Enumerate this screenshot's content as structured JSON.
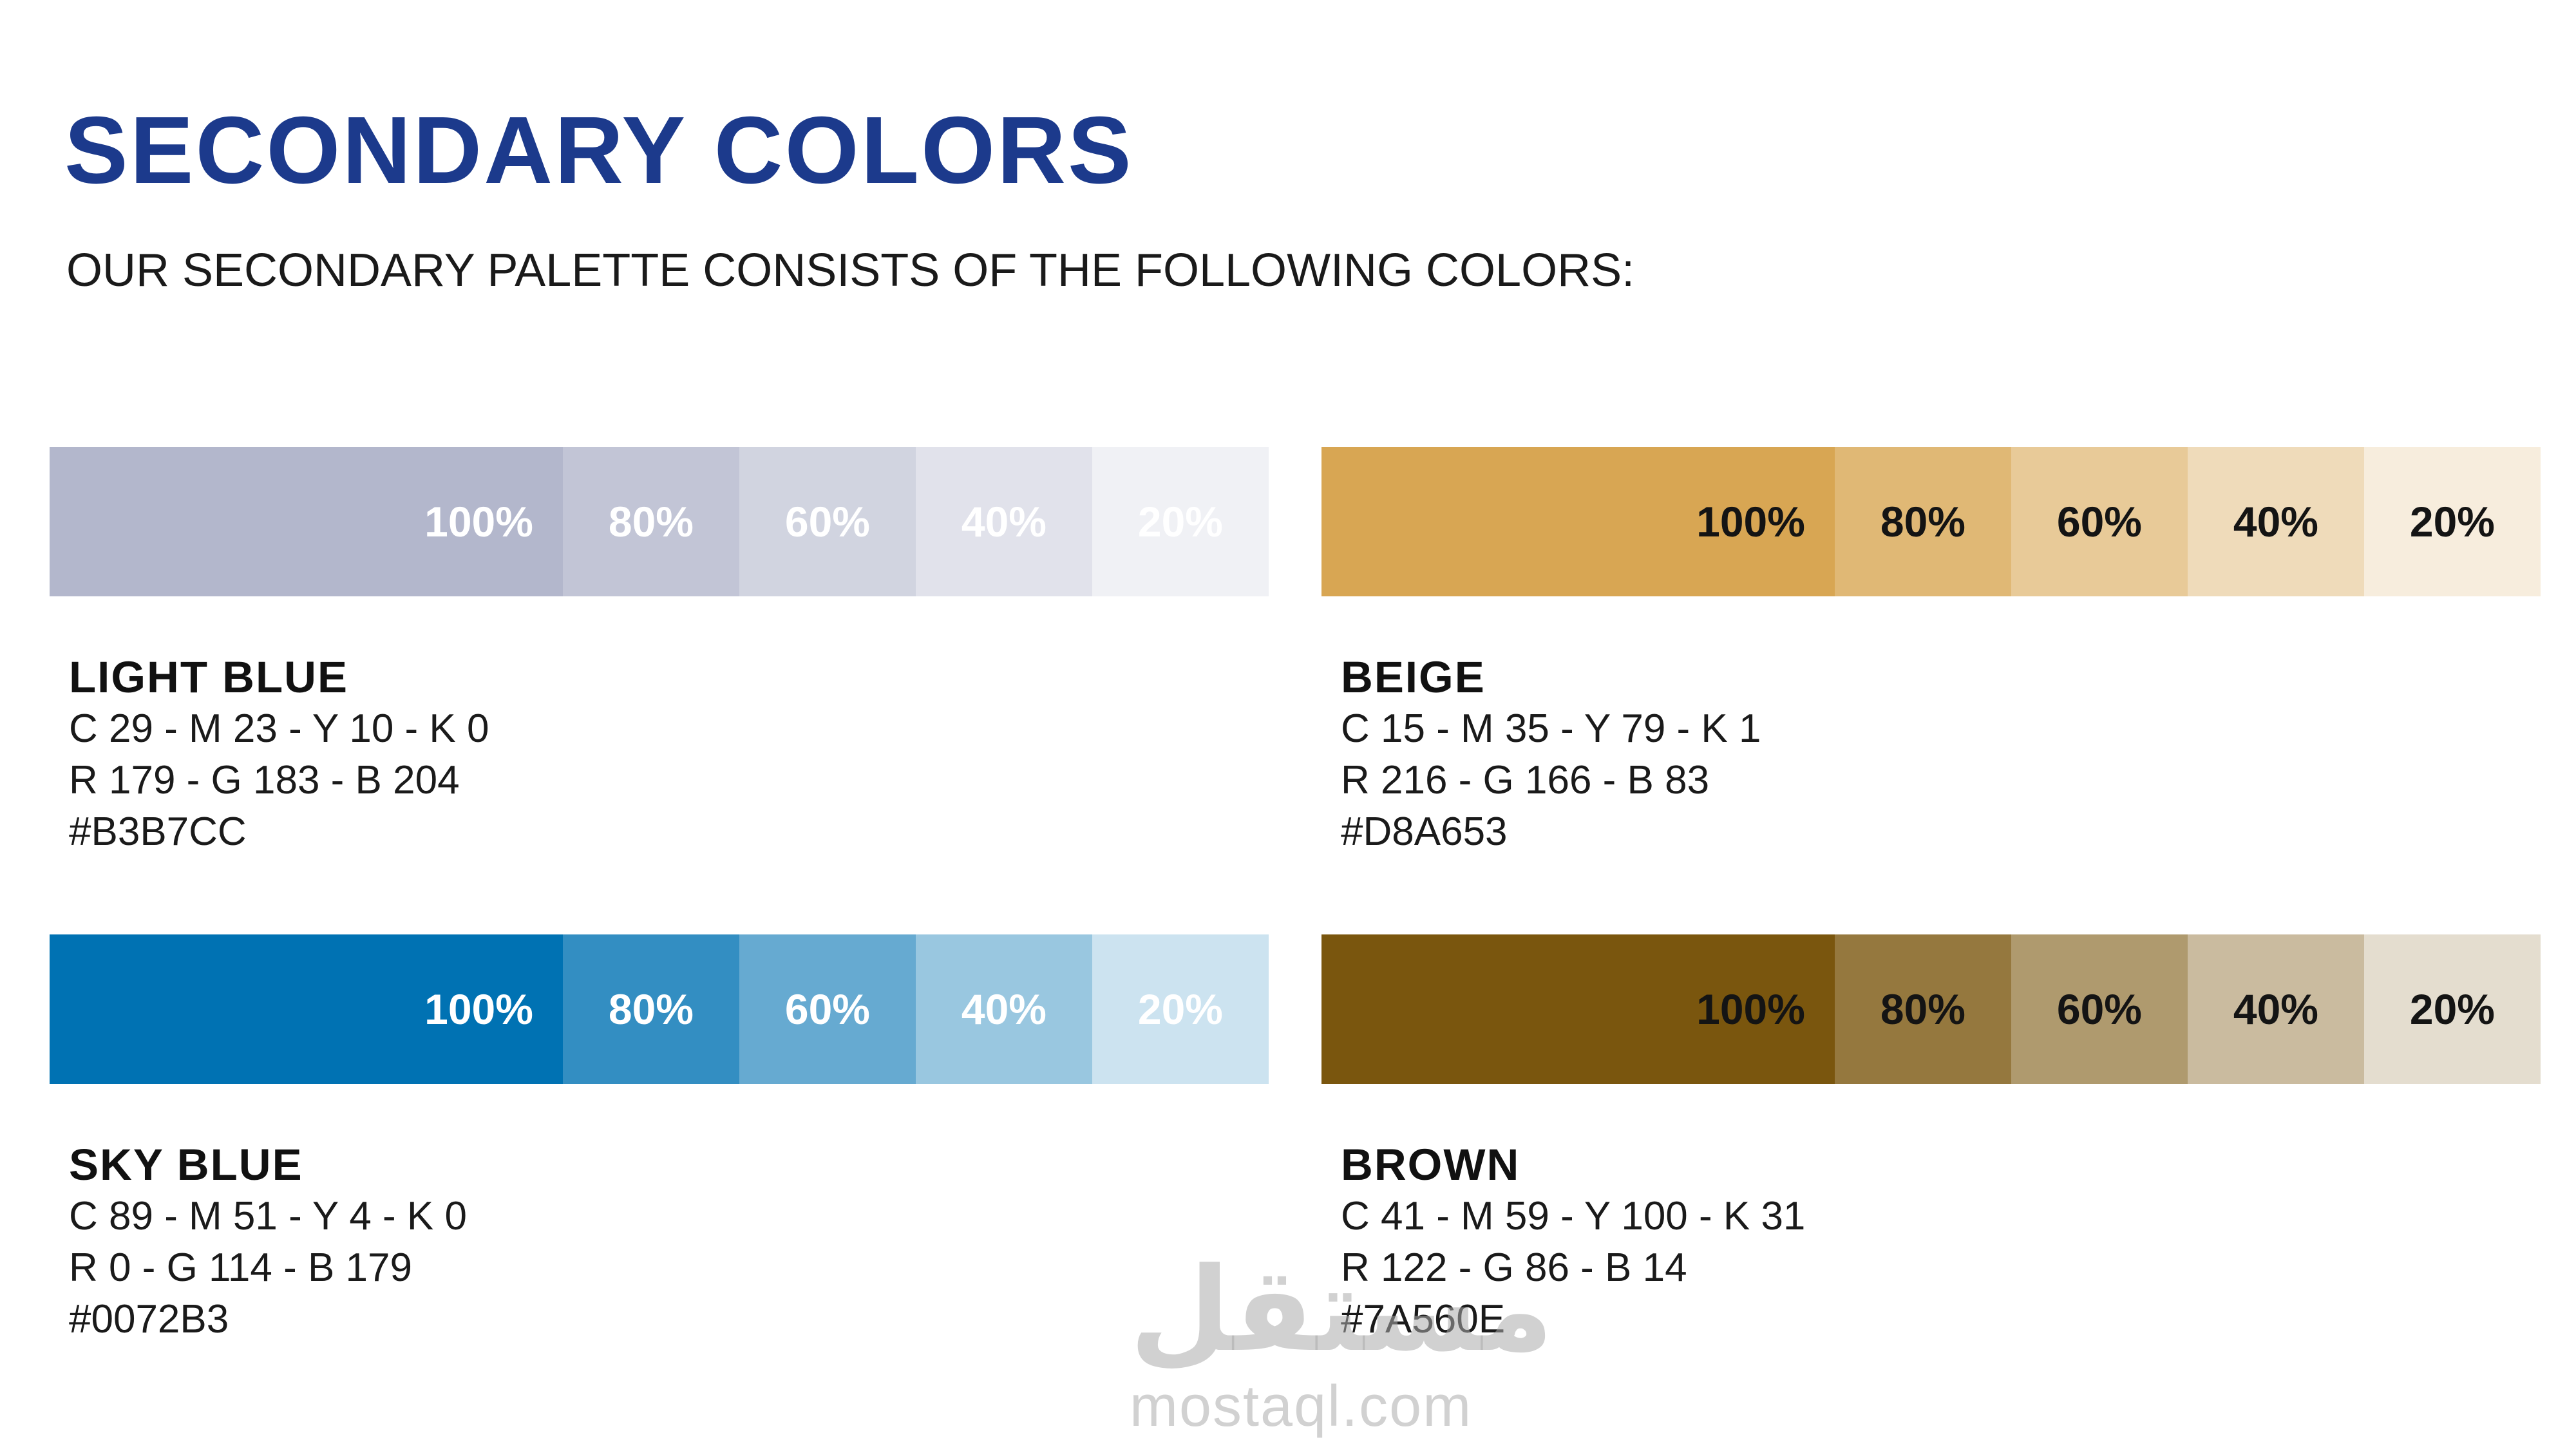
{
  "page": {
    "title": "SECONDARY COLORS",
    "subtitle": "OUR SECONDARY PALETTE CONSISTS OF THE FOLLOWING COLORS:",
    "title_color": "#1C3A8C"
  },
  "tint_labels": [
    "100%",
    "80%",
    "60%",
    "40%",
    "20%"
  ],
  "palette": [
    {
      "name": "LIGHT BLUE",
      "cmyk": "C 29 - M 23 - Y 10 - K 0",
      "rgb": "R 179 - G 183 - B 204",
      "hex": "#B3B7CC",
      "label_color": "#FFFFFF",
      "tints": [
        "#B3B7CC",
        "#C2C5D6",
        "#D1D4E0",
        "#E1E2EB",
        "#F0F1F5"
      ]
    },
    {
      "name": "BEIGE",
      "cmyk": "C 15 - M 35 - Y 79 - K 1",
      "rgb": "R 216 - G 166 - B 83",
      "hex": "#D8A653",
      "label_color": "#141414",
      "tints": [
        "#D8A653",
        "#E0B875",
        "#E8CA98",
        "#EFDBBA",
        "#F7EDDD"
      ]
    },
    {
      "name": "SKY BLUE",
      "cmyk": "C 89 - M 51 - Y 4 - K 0",
      "rgb": "R 0 - G 114 - B 179",
      "hex": "#0072B3",
      "label_color": "#FFFFFF",
      "tints": [
        "#0072B3",
        "#338EC2",
        "#66AAD1",
        "#99C7E0",
        "#CCE3F0"
      ]
    },
    {
      "name": "BROWN",
      "cmyk": "C 41 - M 59 - Y 100 - K 31",
      "rgb": "R 122 - G 86 - B 14",
      "hex": "#7A560E",
      "label_color": "#141414",
      "tints": [
        "#7A560E",
        "#95783E",
        "#AF9A6E",
        "#CABB9F",
        "#E4DDCF"
      ]
    }
  ],
  "watermark": {
    "logo": "مستقل",
    "domain": "mostaql.com"
  }
}
